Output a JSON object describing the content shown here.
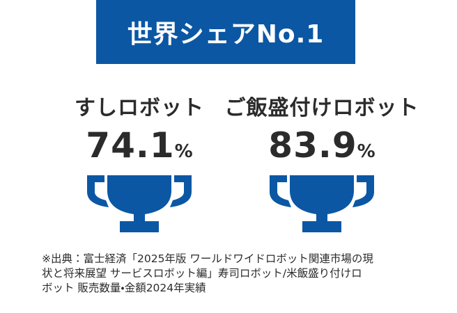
{
  "header": {
    "title": "世界シェアNo.1"
  },
  "items": [
    {
      "label": "すしロボット",
      "value": 74.1,
      "unit": "%"
    },
    {
      "label": "ご飯盛付けロボット",
      "value": 83.9,
      "unit": "%"
    }
  ],
  "footnote": {
    "lines": [
      "※出典：富士経済「2025年版 ワールドワイドロボット関連市場の現",
      "状と将来展望 サービスロボット編」寿司ロボット/米飯盛り付けロ",
      "ボット 販売数量・金額2024年実績"
    ]
  }
}
